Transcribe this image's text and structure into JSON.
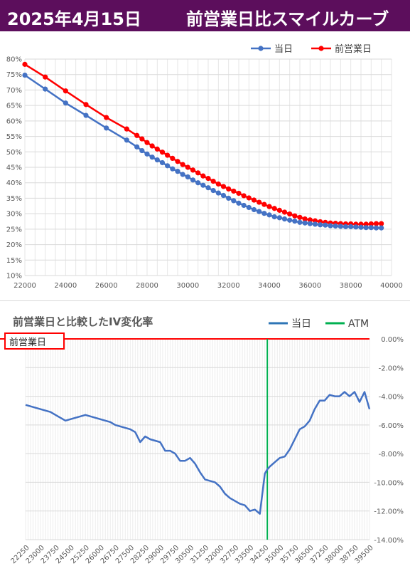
{
  "header": {
    "date": "2025年4月15日",
    "title": "前営業日比スマイルカーブ"
  },
  "chart_data": [
    {
      "type": "line",
      "series": [
        {
          "name": "当日",
          "color": "#4472c4",
          "x": [
            22000,
            23000,
            24000,
            25000,
            26000,
            27000,
            27500,
            27750,
            28000,
            28250,
            28500,
            28750,
            29000,
            29250,
            29500,
            29750,
            30000,
            30250,
            30500,
            30750,
            31000,
            31250,
            31500,
            31750,
            32000,
            32250,
            32500,
            32750,
            33000,
            33250,
            33500,
            33750,
            34000,
            34250,
            34500,
            34750,
            35000,
            35250,
            35500,
            35750,
            36000,
            36250,
            36500,
            36750,
            37000,
            37250,
            37500,
            37750,
            38000,
            38250,
            38500,
            38750,
            39000,
            39250,
            39500
          ],
          "y": [
            74.8,
            70.3,
            65.8,
            61.8,
            57.7,
            53.8,
            51.6,
            50.4,
            49.3,
            48.3,
            47.4,
            46.5,
            45.5,
            44.5,
            43.7,
            42.7,
            41.9,
            40.9,
            40.0,
            39.2,
            38.4,
            37.5,
            36.7,
            35.9,
            35.0,
            34.2,
            33.4,
            32.7,
            32.0,
            31.3,
            30.7,
            30.1,
            29.6,
            29.0,
            28.7,
            28.3,
            27.9,
            27.6,
            27.2,
            27.0,
            26.8,
            26.6,
            26.4,
            26.3,
            26.1,
            26.0,
            25.9,
            25.8,
            25.8,
            25.7,
            25.6,
            25.5,
            25.5,
            25.4,
            25.4
          ]
        },
        {
          "name": "前営業日",
          "color": "#ff0000",
          "x": [
            22000,
            23000,
            24000,
            25000,
            26000,
            27000,
            27500,
            27750,
            28000,
            28250,
            28500,
            28750,
            29000,
            29250,
            29500,
            29750,
            30000,
            30250,
            30500,
            30750,
            31000,
            31250,
            31500,
            31750,
            32000,
            32250,
            32500,
            32750,
            33000,
            33250,
            33500,
            33750,
            34000,
            34250,
            34500,
            34750,
            35000,
            35250,
            35500,
            35750,
            36000,
            36250,
            36500,
            36750,
            37000,
            37250,
            37500,
            37750,
            38000,
            38250,
            38500,
            38750,
            39000,
            39250,
            39500
          ],
          "y": [
            78.3,
            74.2,
            69.7,
            65.3,
            61.1,
            57.4,
            55.3,
            54.2,
            53.0,
            51.9,
            50.9,
            49.9,
            48.9,
            47.9,
            46.9,
            45.9,
            45.0,
            44.1,
            43.2,
            42.2,
            41.4,
            40.5,
            39.6,
            38.8,
            38.0,
            37.3,
            36.6,
            35.8,
            35.1,
            34.4,
            33.7,
            33.0,
            32.3,
            31.7,
            31.1,
            30.5,
            29.9,
            29.3,
            28.8,
            28.3,
            28.0,
            27.7,
            27.4,
            27.2,
            27.0,
            26.9,
            26.8,
            26.7,
            26.7,
            26.6,
            26.6,
            26.6,
            26.7,
            26.8,
            26.8
          ]
        }
      ],
      "x_ticks": [
        "22000",
        "24000",
        "26000",
        "28000",
        "30000",
        "32000",
        "34000",
        "36000",
        "38000",
        "40000"
      ],
      "y_ticks": [
        "10%",
        "15%",
        "20%",
        "25%",
        "30%",
        "35%",
        "40%",
        "45%",
        "50%",
        "55%",
        "60%",
        "65%",
        "70%",
        "75%",
        "80%"
      ],
      "xlim": [
        22000,
        40000
      ],
      "ylim": [
        10,
        80
      ],
      "grid": true,
      "legend": "top-right"
    },
    {
      "type": "line",
      "title": "前営業日と比較したIV変化率",
      "series": [
        {
          "name": "当日",
          "color": "#4472c4",
          "x": [
            22250,
            22500,
            22750,
            23000,
            23250,
            23500,
            23750,
            24000,
            24250,
            24500,
            24750,
            25000,
            25250,
            25500,
            25750,
            26000,
            26250,
            26500,
            26750,
            27000,
            27250,
            27500,
            27750,
            28000,
            28250,
            28500,
            28750,
            29000,
            29250,
            29500,
            29750,
            30000,
            30250,
            30500,
            30750,
            31000,
            31250,
            31500,
            31750,
            32000,
            32250,
            32500,
            32750,
            33000,
            33250,
            33500,
            33750,
            34000,
            34250,
            34375,
            34500,
            34750,
            35000,
            35250,
            35500,
            35750,
            36000,
            36250,
            36500,
            36750,
            37000,
            37250,
            37500,
            37750,
            38000,
            38250,
            38500,
            38750,
            39000,
            39250,
            39500
          ],
          "y": [
            -4.6,
            -4.7,
            -4.8,
            -4.9,
            -5.0,
            -5.1,
            -5.3,
            -5.5,
            -5.7,
            -5.6,
            -5.5,
            -5.4,
            -5.3,
            -5.4,
            -5.5,
            -5.6,
            -5.7,
            -5.8,
            -6.0,
            -6.1,
            -6.2,
            -6.3,
            -6.5,
            -7.2,
            -6.8,
            -7.0,
            -7.1,
            -7.2,
            -7.8,
            -7.8,
            -8.0,
            -8.5,
            -8.5,
            -8.3,
            -8.7,
            -9.3,
            -9.8,
            -9.9,
            -10.0,
            -10.3,
            -10.8,
            -11.1,
            -11.3,
            -11.5,
            -11.6,
            -12.0,
            -11.9,
            -12.2,
            -9.4,
            -9.1,
            -8.9,
            -8.6,
            -8.3,
            -8.2,
            -7.7,
            -7.0,
            -6.3,
            -6.1,
            -5.7,
            -4.9,
            -4.3,
            -4.3,
            -3.9,
            -4.0,
            -4.0,
            -3.7,
            -4.0,
            -3.7,
            -4.4,
            -3.7,
            -4.9
          ]
        }
      ],
      "legend_items": [
        {
          "name": "当日",
          "color": "#2e75b6"
        },
        {
          "name": "ATM",
          "color": "#00b050"
        }
      ],
      "atm_strike": 34375,
      "baseline_label": "前営業日",
      "x_ticks": [
        "22250",
        "23000",
        "23750",
        "24500",
        "25250",
        "26000",
        "26750",
        "27500",
        "28250",
        "29000",
        "29750",
        "30500",
        "31250",
        "32000",
        "32750",
        "33500",
        "34250",
        "35000",
        "35750",
        "36500",
        "37250",
        "38000",
        "38750",
        "39500"
      ],
      "y_ticks": [
        "0.00%",
        "-2.00%",
        "-4.00%",
        "-6.00%",
        "-8.00%",
        "-10.00%",
        "-12.00%",
        "-14.00%"
      ],
      "xlim": [
        22250,
        39500
      ],
      "ylim": [
        -14,
        0
      ],
      "grid": true,
      "legend": "top-right"
    }
  ]
}
